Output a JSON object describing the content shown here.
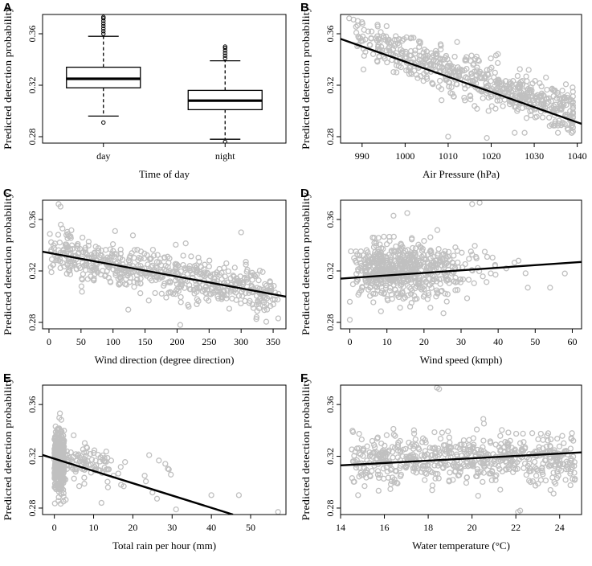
{
  "chart_data": [
    {
      "panel": "A",
      "type": "box",
      "xlabel": "Time of day",
      "ylabel": "Predicted detection probability",
      "ylim": [
        0.275,
        0.375
      ],
      "yticks": [
        0.28,
        0.32,
        0.36
      ],
      "ytick_labels": [
        "0.28",
        "0.32",
        "0.36"
      ],
      "categories": [
        "day",
        "night"
      ],
      "boxes": [
        {
          "name": "day",
          "whisker_low": 0.296,
          "q1": 0.318,
          "median": 0.325,
          "q3": 0.334,
          "whisker_high": 0.358,
          "outliers_low": [
            0.291
          ],
          "outliers_high": [
            0.36,
            0.362,
            0.364,
            0.366,
            0.368,
            0.37,
            0.372,
            0.373
          ]
        },
        {
          "name": "night",
          "whisker_low": 0.278,
          "q1": 0.301,
          "median": 0.308,
          "q3": 0.316,
          "whisker_high": 0.339,
          "outliers_low": [
            0.276
          ],
          "outliers_high": [
            0.341,
            0.343,
            0.345,
            0.347,
            0.349,
            0.35
          ]
        }
      ]
    },
    {
      "panel": "B",
      "type": "scatter",
      "xlabel": "Air Pressure (hPa)",
      "ylabel": "Predicted detection probability",
      "xlim": [
        985,
        1041
      ],
      "ylim": [
        0.275,
        0.375
      ],
      "xticks": [
        990,
        1000,
        1010,
        1020,
        1030,
        1040
      ],
      "xtick_labels": [
        "990",
        "1000",
        "1010",
        "1020",
        "1030",
        "1040"
      ],
      "yticks": [
        0.28,
        0.32,
        0.36
      ],
      "ytick_labels": [
        "0.28",
        "0.32",
        "0.36"
      ],
      "trend_line": {
        "x": [
          985,
          1041
        ],
        "y": [
          0.356,
          0.29
        ]
      }
    },
    {
      "panel": "C",
      "type": "scatter",
      "xlabel": "Wind direction (degree direction)",
      "ylabel": "Predicted detection probability",
      "xlim": [
        -10,
        370
      ],
      "ylim": [
        0.275,
        0.375
      ],
      "xticks": [
        0,
        50,
        100,
        150,
        200,
        250,
        300,
        350
      ],
      "xtick_labels": [
        "0",
        "50",
        "100",
        "150",
        "200",
        "250",
        "300",
        "350"
      ],
      "yticks": [
        0.28,
        0.32,
        0.36
      ],
      "ytick_labels": [
        "0.28",
        "0.32",
        "0.36"
      ],
      "trend_line": {
        "x": [
          -10,
          370
        ],
        "y": [
          0.335,
          0.3
        ]
      }
    },
    {
      "panel": "D",
      "type": "scatter",
      "xlabel": "Wind speed (kmph)",
      "ylabel": "Predicted detection probability",
      "xlim": [
        -2.5,
        62.5
      ],
      "ylim": [
        0.275,
        0.375
      ],
      "xticks": [
        0,
        10,
        20,
        30,
        40,
        50,
        60
      ],
      "xtick_labels": [
        "0",
        "10",
        "20",
        "30",
        "40",
        "50",
        "60"
      ],
      "yticks": [
        0.28,
        0.32,
        0.36
      ],
      "ytick_labels": [
        "0.28",
        "0.32",
        "0.36"
      ],
      "trend_line": {
        "x": [
          -2.5,
          62.5
        ],
        "y": [
          0.314,
          0.327
        ]
      }
    },
    {
      "panel": "E",
      "type": "scatter",
      "xlabel": "Total rain per hour (mm)",
      "ylabel": "Predicted detection probability",
      "xlim": [
        -3,
        59
      ],
      "ylim": [
        0.275,
        0.375
      ],
      "xticks": [
        0,
        10,
        20,
        30,
        40,
        50
      ],
      "xtick_labels": [
        "0",
        "10",
        "20",
        "30",
        "40",
        "50"
      ],
      "yticks": [
        0.28,
        0.32,
        0.36
      ],
      "ytick_labels": [
        "0.28",
        "0.32",
        "0.36"
      ],
      "trend_line": {
        "x": [
          -3,
          45.5
        ],
        "y": [
          0.321,
          0.275
        ]
      }
    },
    {
      "panel": "F",
      "type": "scatter",
      "xlabel": "Water temperature (°C)",
      "ylabel": "Predicted detection probability",
      "xlim": [
        14,
        25
      ],
      "ylim": [
        0.275,
        0.375
      ],
      "xticks": [
        14,
        16,
        18,
        20,
        22,
        24
      ],
      "xtick_labels": [
        "14",
        "16",
        "18",
        "20",
        "22",
        "24"
      ],
      "yticks": [
        0.28,
        0.32,
        0.36
      ],
      "ytick_labels": [
        "0.28",
        "0.32",
        "0.36"
      ],
      "trend_line": {
        "x": [
          14,
          25
        ],
        "y": [
          0.313,
          0.323
        ]
      }
    }
  ]
}
